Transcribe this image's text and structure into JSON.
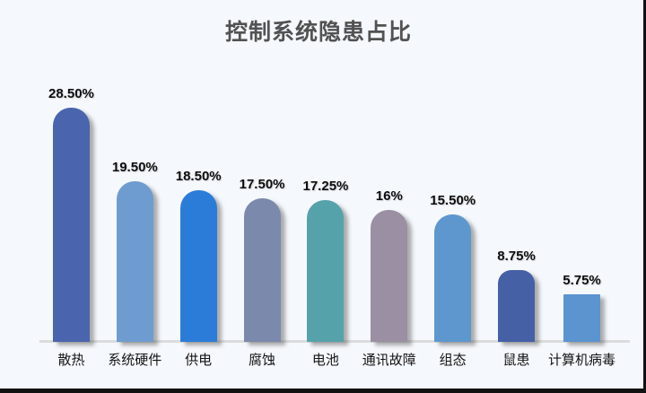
{
  "title": "控制系统隐患占比",
  "chart_data": {
    "type": "bar",
    "title": "控制系统隐患占比",
    "categories": [
      "散热",
      "系统硬件",
      "供电",
      "腐蚀",
      "电池",
      "通讯故障",
      "组态",
      "鼠患",
      "计算机病毒"
    ],
    "values": [
      28.5,
      19.5,
      18.5,
      17.5,
      17.25,
      16,
      15.5,
      8.75,
      5.75
    ],
    "display_values": [
      "28.50%",
      "19.50%",
      "18.50%",
      "17.50%",
      "17.25%",
      "16%",
      "15.50%",
      "8.75%",
      "5.75%"
    ],
    "bar_colors": [
      "#4a64ae",
      "#6f9cd0",
      "#2b7cd9",
      "#7b89ac",
      "#56a2ab",
      "#9a8fa3",
      "#5e97ce",
      "#4660a6",
      "#5b94cf"
    ],
    "ylim": [
      0,
      30
    ],
    "grid": false,
    "legend_visible": false,
    "bar_top_style": "rounded",
    "value_labels_position": "above"
  },
  "style": {
    "background_color": "#f5f8fc",
    "title_color": "#525252",
    "axis_line_color": "#dcdcdc",
    "label_color": "#0d0d0d"
  }
}
